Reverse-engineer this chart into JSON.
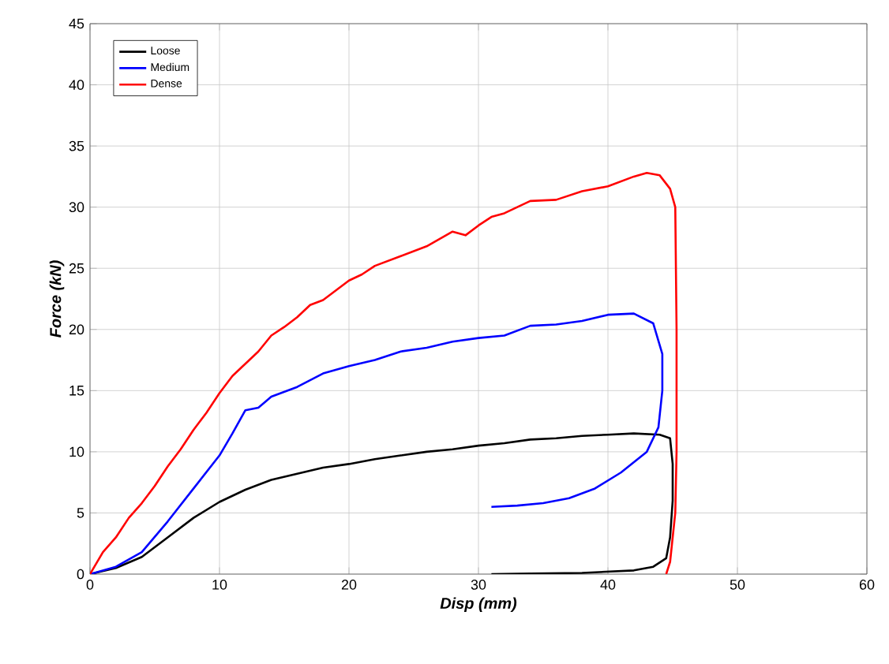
{
  "chart_data": {
    "type": "line",
    "xlabel": "Disp (mm)",
    "ylabel": "Force (kN)",
    "xlim": [
      0,
      60
    ],
    "ylim": [
      0,
      45
    ],
    "xticks": [
      0,
      10,
      20,
      30,
      40,
      50,
      60
    ],
    "yticks": [
      0,
      5,
      10,
      15,
      20,
      25,
      30,
      35,
      40,
      45
    ],
    "grid": true,
    "legend": "top left",
    "marker": "none",
    "line_style": "solid",
    "series": [
      {
        "name": "Loose",
        "color": "#000000",
        "x": [
          0,
          2,
          4,
          6,
          8,
          10,
          12,
          14,
          16,
          18,
          20,
          22,
          24,
          26,
          28,
          30,
          32,
          34,
          36,
          38,
          40,
          42,
          44,
          44.8,
          45,
          45,
          44.8,
          44.5,
          43.5,
          42,
          38,
          34,
          31
        ],
        "values": [
          0,
          0.5,
          1.4,
          3,
          4.6,
          5.9,
          6.9,
          7.7,
          8.2,
          8.7,
          9.0,
          9.4,
          9.7,
          10.0,
          10.2,
          10.5,
          10.7,
          11.0,
          11.1,
          11.3,
          11.4,
          11.5,
          11.4,
          11.1,
          9,
          6,
          3,
          1.3,
          0.6,
          0.3,
          0.1,
          0.05,
          0
        ]
      },
      {
        "name": "Medium",
        "color": "#0000ff",
        "x": [
          0,
          2,
          4,
          6,
          8,
          10,
          11,
          12,
          13,
          14,
          16,
          18,
          20,
          22,
          24,
          26,
          28,
          30,
          32,
          34,
          36,
          38,
          40,
          42,
          43.5,
          44.2,
          44.2,
          43.9,
          43,
          41,
          39,
          37,
          35,
          33,
          31
        ],
        "values": [
          0,
          0.6,
          1.8,
          4.3,
          7,
          9.7,
          11.5,
          13.4,
          13.6,
          14.5,
          15.3,
          16.4,
          17,
          17.5,
          18.2,
          18.5,
          19,
          19.3,
          19.5,
          20.3,
          20.4,
          20.7,
          21.2,
          21.3,
          20.5,
          18,
          15,
          12,
          10,
          8.3,
          7,
          6.2,
          5.8,
          5.6,
          5.5
        ]
      },
      {
        "name": "Dense",
        "color": "#ff0000",
        "x": [
          0,
          1,
          2,
          3,
          4,
          5,
          6,
          7,
          8,
          9,
          10,
          11,
          12,
          13,
          14,
          15,
          16,
          17,
          18,
          19,
          20,
          21,
          22,
          24,
          26,
          28,
          29,
          30,
          31,
          32,
          34,
          36,
          38,
          40,
          42,
          43,
          44,
          44.8,
          45.2,
          45.3,
          45.3,
          45.2,
          44.8,
          44.5
        ],
        "values": [
          0,
          1.8,
          3,
          4.6,
          5.8,
          7.2,
          8.8,
          10.2,
          11.8,
          13.2,
          14.8,
          16.2,
          17.2,
          18.2,
          19.5,
          20.2,
          21,
          22,
          22.4,
          23.2,
          24,
          24.5,
          25.2,
          26,
          26.8,
          28,
          27.7,
          28.5,
          29.2,
          29.5,
          30.5,
          30.6,
          31.3,
          31.7,
          32.5,
          32.8,
          32.6,
          31.5,
          30,
          20,
          10,
          5,
          1,
          0
        ]
      }
    ]
  }
}
